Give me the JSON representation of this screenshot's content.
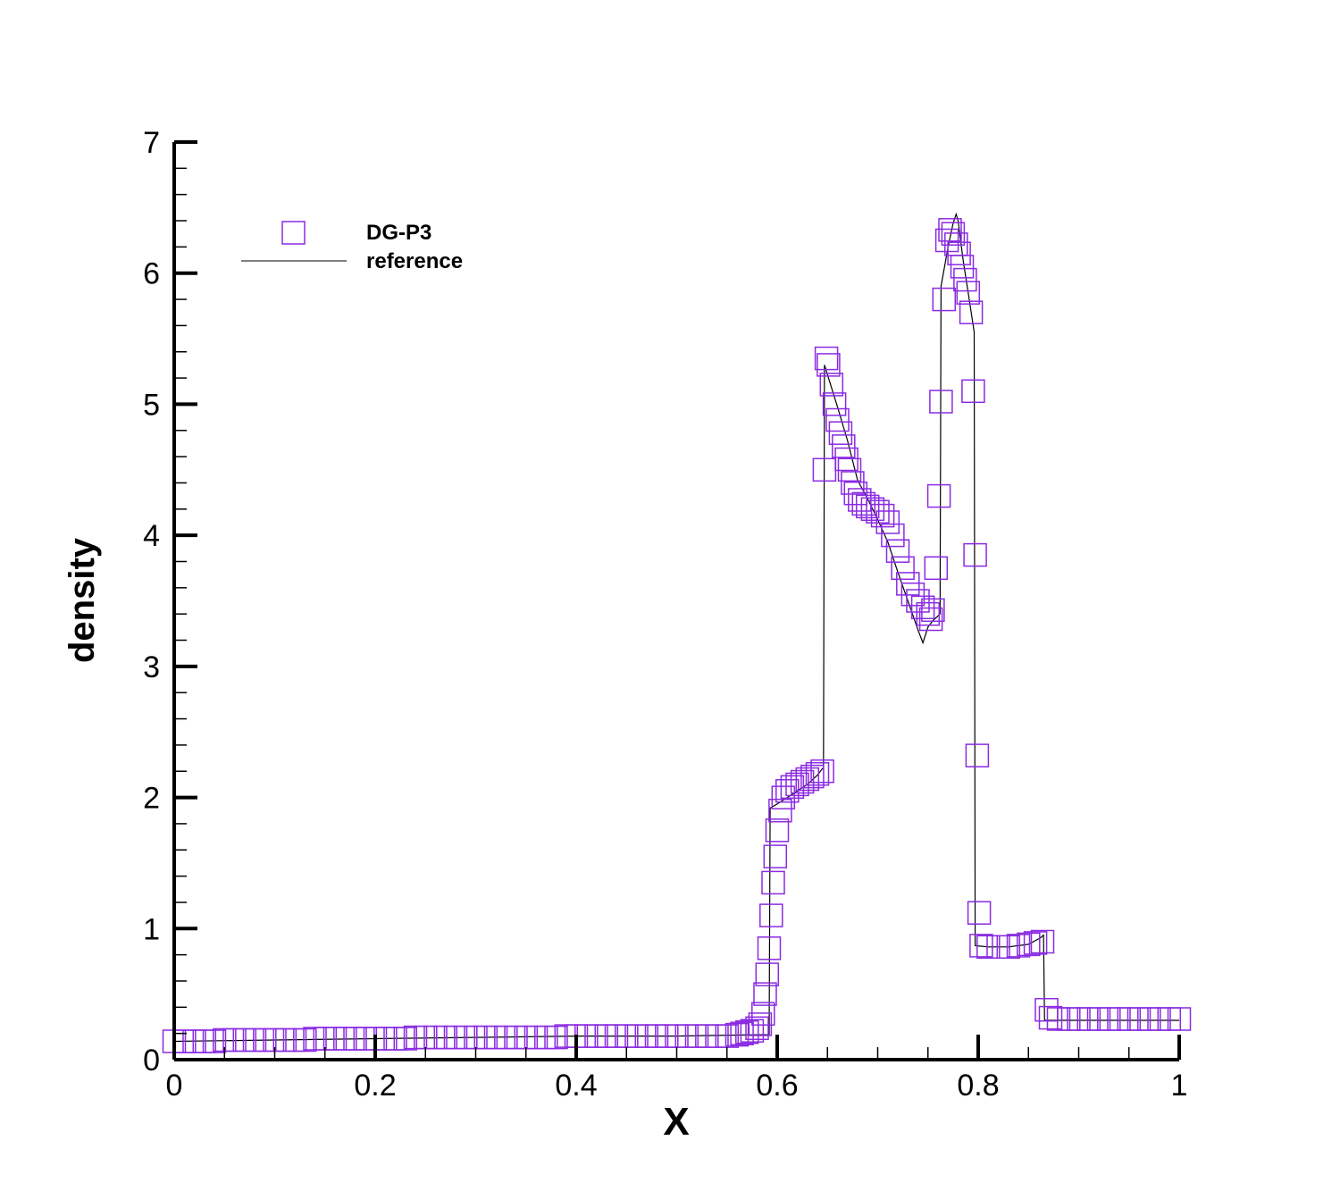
{
  "chart_data": {
    "type": "scatter",
    "xlabel": "X",
    "ylabel": "density",
    "xlim": [
      0,
      1
    ],
    "ylim": [
      0,
      7
    ],
    "x_ticks": [
      "0",
      "0.2",
      "0.4",
      "0.6",
      "0.8",
      "1"
    ],
    "y_ticks": [
      "0",
      "1",
      "2",
      "3",
      "4",
      "5",
      "6",
      "7"
    ],
    "legend_position": "top-left",
    "grid": false,
    "series": [
      {
        "name": "DG-P3",
        "marker": "square",
        "color": "#8a2be2",
        "points": [
          [
            0.0,
            0.14
          ],
          [
            0.01,
            0.14
          ],
          [
            0.02,
            0.14
          ],
          [
            0.03,
            0.14
          ],
          [
            0.04,
            0.14
          ],
          [
            0.05,
            0.15
          ],
          [
            0.06,
            0.15
          ],
          [
            0.07,
            0.15
          ],
          [
            0.08,
            0.15
          ],
          [
            0.09,
            0.15
          ],
          [
            0.1,
            0.15
          ],
          [
            0.11,
            0.15
          ],
          [
            0.12,
            0.15
          ],
          [
            0.13,
            0.15
          ],
          [
            0.14,
            0.16
          ],
          [
            0.15,
            0.16
          ],
          [
            0.16,
            0.16
          ],
          [
            0.17,
            0.16
          ],
          [
            0.18,
            0.16
          ],
          [
            0.19,
            0.16
          ],
          [
            0.2,
            0.16
          ],
          [
            0.21,
            0.16
          ],
          [
            0.22,
            0.16
          ],
          [
            0.23,
            0.16
          ],
          [
            0.24,
            0.17
          ],
          [
            0.25,
            0.17
          ],
          [
            0.26,
            0.17
          ],
          [
            0.27,
            0.17
          ],
          [
            0.28,
            0.17
          ],
          [
            0.29,
            0.17
          ],
          [
            0.3,
            0.17
          ],
          [
            0.31,
            0.17
          ],
          [
            0.32,
            0.17
          ],
          [
            0.33,
            0.17
          ],
          [
            0.34,
            0.17
          ],
          [
            0.35,
            0.17
          ],
          [
            0.36,
            0.17
          ],
          [
            0.37,
            0.17
          ],
          [
            0.38,
            0.17
          ],
          [
            0.39,
            0.18
          ],
          [
            0.4,
            0.18
          ],
          [
            0.41,
            0.18
          ],
          [
            0.42,
            0.18
          ],
          [
            0.43,
            0.18
          ],
          [
            0.44,
            0.18
          ],
          [
            0.45,
            0.18
          ],
          [
            0.46,
            0.18
          ],
          [
            0.47,
            0.18
          ],
          [
            0.48,
            0.18
          ],
          [
            0.49,
            0.18
          ],
          [
            0.5,
            0.18
          ],
          [
            0.51,
            0.18
          ],
          [
            0.52,
            0.18
          ],
          [
            0.53,
            0.18
          ],
          [
            0.54,
            0.18
          ],
          [
            0.55,
            0.18
          ],
          [
            0.56,
            0.19
          ],
          [
            0.565,
            0.2
          ],
          [
            0.57,
            0.21
          ],
          [
            0.575,
            0.22
          ],
          [
            0.58,
            0.24
          ],
          [
            0.583,
            0.27
          ],
          [
            0.586,
            0.35
          ],
          [
            0.588,
            0.5
          ],
          [
            0.59,
            0.65
          ],
          [
            0.592,
            0.85
          ],
          [
            0.594,
            1.1
          ],
          [
            0.596,
            1.35
          ],
          [
            0.598,
            1.55
          ],
          [
            0.6,
            1.75
          ],
          [
            0.603,
            1.9
          ],
          [
            0.606,
            2.0
          ],
          [
            0.61,
            2.05
          ],
          [
            0.615,
            2.08
          ],
          [
            0.62,
            2.1
          ],
          [
            0.625,
            2.12
          ],
          [
            0.63,
            2.14
          ],
          [
            0.635,
            2.16
          ],
          [
            0.64,
            2.18
          ],
          [
            0.645,
            2.2
          ],
          [
            0.647,
            4.5
          ],
          [
            0.649,
            5.35
          ],
          [
            0.651,
            5.3
          ],
          [
            0.654,
            5.15
          ],
          [
            0.657,
            5.0
          ],
          [
            0.66,
            4.88
          ],
          [
            0.663,
            4.78
          ],
          [
            0.666,
            4.68
          ],
          [
            0.669,
            4.58
          ],
          [
            0.672,
            4.5
          ],
          [
            0.675,
            4.4
          ],
          [
            0.678,
            4.32
          ],
          [
            0.682,
            4.27
          ],
          [
            0.686,
            4.24
          ],
          [
            0.69,
            4.22
          ],
          [
            0.695,
            4.2
          ],
          [
            0.7,
            4.18
          ],
          [
            0.705,
            4.15
          ],
          [
            0.71,
            4.1
          ],
          [
            0.715,
            4.0
          ],
          [
            0.72,
            3.88
          ],
          [
            0.725,
            3.75
          ],
          [
            0.73,
            3.63
          ],
          [
            0.735,
            3.55
          ],
          [
            0.74,
            3.5
          ],
          [
            0.745,
            3.45
          ],
          [
            0.75,
            3.4
          ],
          [
            0.753,
            3.36
          ],
          [
            0.755,
            3.43
          ],
          [
            0.758,
            3.75
          ],
          [
            0.761,
            4.3
          ],
          [
            0.763,
            5.02
          ],
          [
            0.766,
            5.8
          ],
          [
            0.769,
            6.25
          ],
          [
            0.772,
            6.33
          ],
          [
            0.775,
            6.3
          ],
          [
            0.778,
            6.22
          ],
          [
            0.781,
            6.15
          ],
          [
            0.784,
            6.05
          ],
          [
            0.787,
            5.95
          ],
          [
            0.79,
            5.85
          ],
          [
            0.793,
            5.7
          ],
          [
            0.795,
            5.1
          ],
          [
            0.797,
            3.85
          ],
          [
            0.799,
            2.32
          ],
          [
            0.801,
            1.12
          ],
          [
            0.803,
            0.87
          ],
          [
            0.81,
            0.86
          ],
          [
            0.82,
            0.86
          ],
          [
            0.83,
            0.86
          ],
          [
            0.84,
            0.87
          ],
          [
            0.85,
            0.88
          ],
          [
            0.857,
            0.89
          ],
          [
            0.864,
            0.9
          ],
          [
            0.868,
            0.38
          ],
          [
            0.872,
            0.32
          ],
          [
            0.88,
            0.31
          ],
          [
            0.89,
            0.31
          ],
          [
            0.9,
            0.31
          ],
          [
            0.91,
            0.31
          ],
          [
            0.92,
            0.31
          ],
          [
            0.93,
            0.31
          ],
          [
            0.94,
            0.31
          ],
          [
            0.95,
            0.31
          ],
          [
            0.96,
            0.31
          ],
          [
            0.97,
            0.31
          ],
          [
            0.98,
            0.31
          ],
          [
            0.99,
            0.31
          ],
          [
            1.0,
            0.31
          ]
        ]
      },
      {
        "name": "reference",
        "line": "solid",
        "color": "#000000",
        "points": [
          [
            0.0,
            0.14
          ],
          [
            0.1,
            0.15
          ],
          [
            0.2,
            0.16
          ],
          [
            0.3,
            0.17
          ],
          [
            0.4,
            0.18
          ],
          [
            0.5,
            0.18
          ],
          [
            0.58,
            0.19
          ],
          [
            0.592,
            0.19
          ],
          [
            0.593,
            1.92
          ],
          [
            0.6,
            1.95
          ],
          [
            0.61,
            2.0
          ],
          [
            0.62,
            2.05
          ],
          [
            0.63,
            2.1
          ],
          [
            0.64,
            2.17
          ],
          [
            0.645,
            2.22
          ],
          [
            0.646,
            2.22
          ],
          [
            0.647,
            5.3
          ],
          [
            0.66,
            4.98
          ],
          [
            0.67,
            4.72
          ],
          [
            0.68,
            4.42
          ],
          [
            0.69,
            4.28
          ],
          [
            0.7,
            4.12
          ],
          [
            0.71,
            3.95
          ],
          [
            0.72,
            3.72
          ],
          [
            0.73,
            3.5
          ],
          [
            0.74,
            3.28
          ],
          [
            0.745,
            3.18
          ],
          [
            0.75,
            3.3
          ],
          [
            0.755,
            3.35
          ],
          [
            0.762,
            3.4
          ],
          [
            0.763,
            5.9
          ],
          [
            0.77,
            6.2
          ],
          [
            0.775,
            6.38
          ],
          [
            0.778,
            6.45
          ],
          [
            0.78,
            6.4
          ],
          [
            0.785,
            6.1
          ],
          [
            0.79,
            5.85
          ],
          [
            0.796,
            5.55
          ],
          [
            0.797,
            0.87
          ],
          [
            0.81,
            0.86
          ],
          [
            0.83,
            0.86
          ],
          [
            0.85,
            0.88
          ],
          [
            0.862,
            0.93
          ],
          [
            0.865,
            0.95
          ],
          [
            0.866,
            0.3
          ],
          [
            0.9,
            0.3
          ],
          [
            1.0,
            0.3
          ]
        ]
      }
    ]
  }
}
